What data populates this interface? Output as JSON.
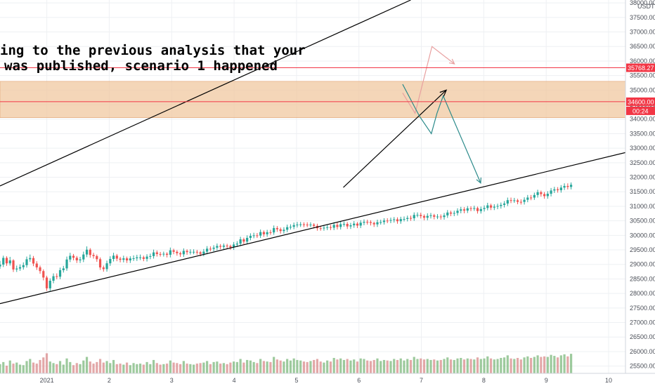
{
  "chart_data": {
    "type": "candlestick",
    "pair_unit": "USDT",
    "annotation": {
      "line1": "ing to the previous analysis that your",
      "line2": "was published, scenario 1 happened"
    },
    "x_ticks": [
      {
        "label": "2021",
        "x": 0.75
      },
      {
        "label": "2",
        "x": 1.75
      },
      {
        "label": "3",
        "x": 2.75
      },
      {
        "label": "4",
        "x": 3.75
      },
      {
        "label": "5",
        "x": 4.75
      },
      {
        "label": "6",
        "x": 5.75
      },
      {
        "label": "7",
        "x": 6.75
      },
      {
        "label": "8",
        "x": 7.75
      },
      {
        "label": "9",
        "x": 8.75
      },
      {
        "label": "10",
        "x": 9.75
      }
    ],
    "x_range": [
      0,
      10.02
    ],
    "y_range": [
      25250,
      38100
    ],
    "y_ticks": [
      25500,
      26000,
      26500,
      27000,
      27500,
      28000,
      28500,
      29000,
      29500,
      30000,
      30500,
      31000,
      31500,
      32000,
      32500,
      33000,
      33500,
      34000,
      34500,
      35000,
      35500,
      36000,
      36500,
      37000,
      37500,
      38000
    ],
    "price_levels": [
      {
        "label": "35768.27",
        "value": 35768.27,
        "color": "#f23645"
      },
      {
        "label": "34600.00",
        "value": 34600,
        "color": "#f23645"
      }
    ],
    "countdown_label": "00:24",
    "colors": {
      "up": "#26a69a",
      "down": "#ef5350",
      "zone": "#f0c8a0",
      "ema_fast": "#ff9800",
      "ema_slow": "#26a69a",
      "cloud": "#a5d6a7",
      "cloud_red": "#f8bbd0",
      "hist_up": "#7cb87c",
      "hist_down": "#d98b8b"
    },
    "resistance_zone": {
      "top": 35300,
      "bottom": 34050
    },
    "trendlines": [
      {
        "from": [
          0.0,
          31700
        ],
        "to": [
          6.58,
          38100
        ],
        "color": "#000000"
      },
      {
        "from": [
          0.0,
          27650
        ],
        "to": [
          10.02,
          32850
        ],
        "color": "#000000"
      },
      {
        "from": [
          5.5,
          31650
        ],
        "to": [
          7.15,
          35000
        ],
        "color": "#000000",
        "arrow": true
      }
    ],
    "scenario_arrows": [
      {
        "points": [
          [
            6.45,
            34900
          ],
          [
            6.65,
            34200
          ],
          [
            6.92,
            36500
          ],
          [
            7.28,
            35900
          ]
        ],
        "color": "#e8a0a0"
      },
      {
        "points": [
          [
            6.45,
            35200
          ],
          [
            6.72,
            34100
          ],
          [
            6.91,
            33500
          ],
          [
            7.0,
            34200
          ],
          [
            7.1,
            34800
          ],
          [
            7.7,
            31800
          ]
        ],
        "color": "#2b8a8a"
      }
    ],
    "candles": {
      "start_x": 0.0,
      "dx": 0.0535,
      "open": [
        28930,
        28994,
        29224,
        29036,
        29137,
        28826,
        28858,
        28905,
        28974,
        29177,
        29218,
        29030,
        28898,
        28771,
        28548,
        28176,
        28438,
        28594,
        28577,
        28802,
        28863,
        29169,
        29296,
        29229,
        29140,
        29171,
        29341,
        29507,
        29324,
        29286,
        29179,
        28895,
        28838,
        29038,
        29187,
        29301,
        29199,
        29158,
        29209,
        29138,
        29206,
        29211,
        29243,
        29244,
        29191,
        29269,
        29286,
        29413,
        29358,
        29355,
        29366,
        29331,
        29485,
        29434,
        29385,
        29348,
        29466,
        29423,
        29433,
        29434,
        29417,
        29365,
        29440,
        29541,
        29537,
        29576,
        29635,
        29606,
        29648,
        29633,
        29587,
        29685,
        29715,
        29863,
        29784,
        29913,
        29982,
        30000,
        29991,
        30113,
        30038,
        30108,
        30101,
        30251,
        30209,
        30148,
        30193,
        30282,
        30294,
        30353,
        30370,
        30379,
        30369,
        30367,
        30370,
        30328,
        30245,
        30244,
        30263,
        30282,
        30262,
        30361,
        30288,
        30383,
        30394,
        30308,
        30346,
        30404,
        30336,
        30436,
        30466,
        30456,
        30427,
        30379,
        30452,
        30458,
        30509,
        30504,
        30527,
        30552,
        30486,
        30561,
        30564,
        30598,
        30588,
        30703,
        30703,
        30665,
        30608,
        30670,
        30690,
        30640,
        30648,
        30630,
        30687,
        30786,
        30747,
        30770,
        30848,
        30895,
        30852,
        30931,
        30913,
        30938,
        30835,
        30906,
        30941,
        31032,
        30955,
        30987,
        31011,
        31049,
        31095,
        31212,
        31195,
        31206,
        31153,
        31151,
        31224,
        31301,
        31300,
        31389,
        31485,
        31419,
        31350,
        31432,
        31544,
        31583,
        31554,
        31644,
        31700,
        31667
      ],
      "close": [
        28994,
        29224,
        29036,
        29137,
        28826,
        28858,
        28905,
        28974,
        29177,
        29218,
        29030,
        28898,
        28771,
        28548,
        28176,
        28438,
        28594,
        28577,
        28802,
        28863,
        29169,
        29296,
        29229,
        29140,
        29171,
        29341,
        29507,
        29324,
        29286,
        29179,
        28895,
        28838,
        29038,
        29187,
        29301,
        29199,
        29158,
        29209,
        29138,
        29206,
        29211,
        29243,
        29244,
        29191,
        29269,
        29286,
        29413,
        29358,
        29355,
        29366,
        29331,
        29485,
        29434,
        29385,
        29348,
        29466,
        29423,
        29433,
        29434,
        29417,
        29365,
        29440,
        29541,
        29537,
        29576,
        29635,
        29606,
        29648,
        29633,
        29587,
        29685,
        29715,
        29863,
        29784,
        29913,
        29982,
        30000,
        29991,
        30113,
        30038,
        30108,
        30101,
        30251,
        30209,
        30148,
        30193,
        30282,
        30294,
        30353,
        30370,
        30379,
        30369,
        30367,
        30370,
        30328,
        30245,
        30244,
        30263,
        30282,
        30262,
        30361,
        30288,
        30383,
        30394,
        30308,
        30346,
        30404,
        30336,
        30436,
        30466,
        30456,
        30427,
        30379,
        30452,
        30458,
        30509,
        30504,
        30527,
        30552,
        30486,
        30561,
        30564,
        30598,
        30588,
        30703,
        30703,
        30665,
        30608,
        30670,
        30690,
        30640,
        30648,
        30630,
        30687,
        30786,
        30747,
        30770,
        30848,
        30895,
        30852,
        30931,
        30913,
        30938,
        30835,
        30906,
        30941,
        31032,
        30955,
        30987,
        31011,
        31049,
        31095,
        31212,
        31195,
        31206,
        31153,
        31151,
        31224,
        31301,
        31300,
        31389,
        31485,
        31419,
        31350,
        31432,
        31544,
        31583,
        31554,
        31644,
        31700,
        31667,
        31740
      ],
      "high": [
        29120,
        29300,
        29280,
        29260,
        29180,
        28960,
        29000,
        29070,
        29270,
        29340,
        29290,
        29110,
        28960,
        28830,
        28610,
        28520,
        28690,
        28690,
        28890,
        28950,
        29270,
        29400,
        29360,
        29290,
        29260,
        29440,
        29620,
        29560,
        29400,
        29340,
        29240,
        28960,
        29130,
        29280,
        29400,
        29360,
        29260,
        29300,
        29270,
        29280,
        29310,
        29330,
        29340,
        29300,
        29350,
        29370,
        29510,
        29480,
        29430,
        29440,
        29420,
        29580,
        29540,
        29490,
        29440,
        29550,
        29520,
        29520,
        29520,
        29500,
        29460,
        29530,
        29630,
        29620,
        29660,
        29720,
        29700,
        29720,
        29710,
        29680,
        29770,
        29800,
        29950,
        29920,
        30000,
        30070,
        30090,
        30080,
        30200,
        30170,
        30190,
        30190,
        30340,
        30320,
        30270,
        30280,
        30370,
        30380,
        30440,
        30460,
        30460,
        30450,
        30450,
        30450,
        30420,
        30400,
        30330,
        30350,
        30370,
        30360,
        30450,
        30440,
        30470,
        30480,
        30460,
        30430,
        30490,
        30460,
        30520,
        30550,
        30540,
        30520,
        30470,
        30540,
        30540,
        30590,
        30590,
        30610,
        30630,
        30620,
        30640,
        30650,
        30680,
        30680,
        30790,
        30790,
        30780,
        30720,
        30760,
        30770,
        30740,
        30730,
        30720,
        30770,
        30870,
        30850,
        30850,
        30930,
        30980,
        30970,
        31010,
        31000,
        31020,
        30990,
        30990,
        31030,
        31120,
        31090,
        31070,
        31090,
        31130,
        31180,
        31300,
        31300,
        31290,
        31260,
        31240,
        31310,
        31390,
        31390,
        31470,
        31570,
        31540,
        31490,
        31520,
        31630,
        31670,
        31660,
        31730,
        31790,
        31790,
        31820
      ],
      "low": [
        28850,
        28910,
        28950,
        28960,
        28740,
        28740,
        28780,
        28820,
        28890,
        29090,
        28940,
        28810,
        28680,
        28450,
        28090,
        28090,
        28350,
        28490,
        28490,
        28720,
        28780,
        29080,
        29140,
        29050,
        29050,
        29080,
        29250,
        29230,
        29200,
        29090,
        28810,
        28750,
        28750,
        28950,
        29100,
        29110,
        29070,
        29070,
        29050,
        29050,
        29120,
        29120,
        29150,
        29110,
        29100,
        29180,
        29200,
        29270,
        29270,
        29270,
        29240,
        29240,
        29350,
        29300,
        29260,
        29260,
        29330,
        29340,
        29350,
        29330,
        29280,
        29280,
        29350,
        29450,
        29450,
        29490,
        29520,
        29520,
        29550,
        29500,
        29500,
        29600,
        29630,
        29700,
        29700,
        29830,
        29900,
        29910,
        29910,
        29950,
        29950,
        30020,
        30020,
        30120,
        30060,
        30060,
        30110,
        30200,
        30210,
        30270,
        30290,
        30280,
        30280,
        30280,
        30240,
        30160,
        30160,
        30160,
        30180,
        30180,
        30180,
        30200,
        30200,
        30300,
        30220,
        30220,
        30260,
        30250,
        30250,
        30350,
        30370,
        30340,
        30290,
        30290,
        30370,
        30370,
        30420,
        30420,
        30440,
        30400,
        30400,
        30480,
        30480,
        30500,
        30500,
        30620,
        30580,
        30520,
        30520,
        30580,
        30550,
        30560,
        30540,
        30540,
        30600,
        30660,
        30660,
        30680,
        30760,
        30760,
        30770,
        30830,
        30840,
        30750,
        30750,
        30820,
        30860,
        30870,
        30870,
        30900,
        30920,
        30960,
        31010,
        31110,
        31120,
        31070,
        31060,
        31060,
        31140,
        31210,
        31220,
        31300,
        31330,
        31260,
        31260,
        31340,
        31460,
        31470,
        31470,
        31560,
        31580,
        31580
      ]
    },
    "volume": {
      "start_x": 0.0,
      "dx": 0.0535,
      "values": [
        1800,
        2200,
        1500,
        2500,
        1900,
        2100,
        1700,
        1600,
        2400,
        2800,
        2100,
        1900,
        2600,
        3100,
        3900,
        2300,
        2000,
        1800,
        2400,
        1700,
        2900,
        2200,
        1600,
        2000,
        1800,
        2500,
        3200,
        2300,
        1900,
        2200,
        2800,
        2100,
        2400,
        2000,
        2600,
        1800,
        1900,
        1700,
        2100,
        1600,
        2000,
        1800,
        1900,
        1700,
        2200,
        1800,
        2600,
        2000,
        1700,
        1800,
        1900,
        2500,
        2100,
        2000,
        1800,
        2400,
        1900,
        1800,
        1700,
        1900,
        2000,
        2100,
        2400,
        1800,
        2200,
        2300,
        1900,
        2000,
        1800,
        2100,
        2300,
        2200,
        2800,
        2100,
        2600,
        2500,
        2200,
        2000,
        2800,
        2400,
        2300,
        2200,
        3200,
        2700,
        2500,
        2300,
        2800,
        2500,
        2900,
        2600,
        2500,
        2300,
        2200,
        2400,
        2600,
        2800,
        2300,
        2100,
        2500,
        2300,
        3000,
        2700,
        2900,
        2600,
        2800,
        2500,
        2700,
        2300,
        2900,
        2800,
        2500,
        2400,
        2600,
        2900,
        2400,
        2600,
        2500,
        2400,
        2800,
        2600,
        2900,
        2500,
        2800,
        2600,
        3200,
        2800,
        2900,
        2700,
        2800,
        2600,
        2700,
        2500,
        2600,
        2800,
        3100,
        2700,
        2600,
        2900,
        3000,
        2700,
        2900,
        2800,
        2700,
        3100,
        2800,
        2900,
        3300,
        2900,
        2700,
        2800,
        3000,
        3100,
        3500,
        2900,
        2800,
        3000,
        2700,
        3100,
        3300,
        3000,
        3200,
        3500,
        3200,
        3300,
        3200,
        3600,
        3400,
        3100,
        3500,
        3700,
        3300,
        3800
      ],
      "max": 15000
    }
  }
}
